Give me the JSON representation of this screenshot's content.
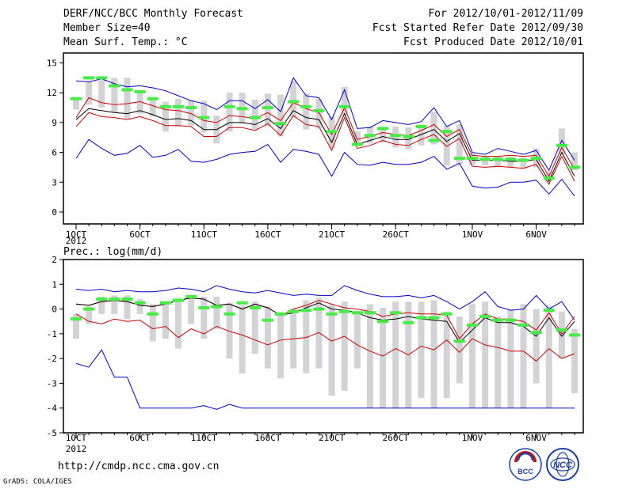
{
  "header": {
    "title": "DERF/NCC/BCC Monthly Forecast",
    "member_size": "Member Size=40",
    "variable": "Mean Surf. Temp.: °C",
    "period": "For 2012/10/01-2012/11/09",
    "fcst_started": "Fcst Started Refer Date 2012/09/30",
    "fcst_produced": "Fcst Produced Date 2012/10/01"
  },
  "footer": {
    "url": "http://cmdp.ncc.cma.gov.cn",
    "grads_credit": "GrADS: COLA/IGES",
    "logo_left_text": "BCC",
    "logo_right_text": "NCC"
  },
  "colors": {
    "max_line": "#0000cc",
    "min_line": "#0000cc",
    "percentile_line": "#cc0000",
    "mean_line": "#000000",
    "box": "#d3d3d5",
    "median_marker": "#44ee44"
  },
  "chart_data": [
    {
      "type": "box-line",
      "title": "Mean Surf. Temp.: °C",
      "ylim": [
        -1.2,
        16
      ],
      "yticks": [
        0,
        3,
        6,
        9,
        12,
        15
      ],
      "ytick_labels": [
        "0",
        "3",
        "6",
        "9",
        "12",
        "15"
      ],
      "x_day_count": 40,
      "xtick_days": [
        1,
        6,
        11,
        16,
        21,
        26,
        32,
        37
      ],
      "xtick_labels": [
        "1OCT",
        "6OCT",
        "11OCT",
        "16OCT",
        "21OCT",
        "26OCT",
        "1NOV",
        "6NOV"
      ],
      "year_label": "2012",
      "series": {
        "max": [
          13.2,
          13.1,
          13.4,
          12.9,
          12.6,
          12.7,
          12.5,
          12.2,
          11.7,
          11.2,
          10.9,
          10.3,
          11.2,
          11.2,
          10.4,
          11.3,
          10.1,
          13.5,
          11.7,
          11.5,
          9.3,
          12.3,
          8.4,
          8.5,
          9.2,
          9.0,
          8.8,
          9.1,
          10.5,
          8.6,
          9.2,
          6.0,
          5.8,
          6.4,
          6.1,
          5.8,
          6.2,
          4.2,
          7.2,
          5.2
        ],
        "p_upper": [
          9.5,
          11.5,
          11.0,
          10.8,
          10.9,
          11.1,
          10.7,
          10.3,
          10.2,
          9.9,
          9.2,
          9.0,
          9.7,
          9.6,
          9.4,
          10.0,
          9.2,
          11.0,
          10.4,
          10.0,
          7.8,
          10.5,
          7.3,
          7.6,
          8.0,
          7.8,
          7.7,
          8.2,
          8.8,
          7.6,
          8.3,
          5.7,
          5.6,
          5.6,
          5.7,
          5.6,
          5.7,
          3.6,
          6.5,
          4.3
        ],
        "mean": [
          9.3,
          10.4,
          10.2,
          10.0,
          9.9,
          10.2,
          9.8,
          9.3,
          9.4,
          9.2,
          8.3,
          8.3,
          9.0,
          9.0,
          8.8,
          9.4,
          8.4,
          10.2,
          9.5,
          9.3,
          7.0,
          9.9,
          6.8,
          7.2,
          7.6,
          7.3,
          7.3,
          7.8,
          8.3,
          7.1,
          7.9,
          5.2,
          5.2,
          5.2,
          5.1,
          5.1,
          5.3,
          3.1,
          6.0,
          3.6
        ],
        "p_lower": [
          8.6,
          10.0,
          9.6,
          9.5,
          9.3,
          9.6,
          9.2,
          8.7,
          8.7,
          8.6,
          7.6,
          7.6,
          8.5,
          8.5,
          8.2,
          8.9,
          7.7,
          9.7,
          8.8,
          8.6,
          6.2,
          9.5,
          6.4,
          6.7,
          7.2,
          6.8,
          6.7,
          7.3,
          7.8,
          6.6,
          7.4,
          4.6,
          4.5,
          4.6,
          4.5,
          4.4,
          4.8,
          2.8,
          5.6,
          3.1
        ],
        "min": [
          5.4,
          7.3,
          6.4,
          5.7,
          5.9,
          6.7,
          5.5,
          5.7,
          6.3,
          5.1,
          5.0,
          5.3,
          5.8,
          6.0,
          6.1,
          6.8,
          5.0,
          6.3,
          6.1,
          5.8,
          3.6,
          6.0,
          4.8,
          4.7,
          5.0,
          4.8,
          4.8,
          5.0,
          5.6,
          4.3,
          4.9,
          2.6,
          2.4,
          2.5,
          3.0,
          3.0,
          3.2,
          1.8,
          3.3,
          1.6
        ],
        "box_upper": [
          11.5,
          13.1,
          13.3,
          13.5,
          13.5,
          12.2,
          11.4,
          11.1,
          11.4,
          11.3,
          11.2,
          9.7,
          12.0,
          12.0,
          11.3,
          11.9,
          11.8,
          13.2,
          11.9,
          11.4,
          9.6,
          12.6,
          8.1,
          8.6,
          8.5,
          8.6,
          8.5,
          8.8,
          10.1,
          8.7,
          8.8,
          5.9,
          5.6,
          5.6,
          5.6,
          5.5,
          6.4,
          4.1,
          8.4,
          6.0
        ],
        "box_lower": [
          10.3,
          10.8,
          10.5,
          10.0,
          9.4,
          9.9,
          9.6,
          8.1,
          8.6,
          8.7,
          8.0,
          6.9,
          8.1,
          8.9,
          8.3,
          8.6,
          7.6,
          9.5,
          8.3,
          8.4,
          6.4,
          9.7,
          6.9,
          6.9,
          7.0,
          6.5,
          6.3,
          6.7,
          6.8,
          4.7,
          4.8,
          4.7,
          4.7,
          4.6,
          4.5,
          4.4,
          4.5,
          3.1,
          5.8,
          4.2
        ],
        "median": [
          11.4,
          13.5,
          13.5,
          12.7,
          12.3,
          12.1,
          11.4,
          10.6,
          10.6,
          10.5,
          9.5,
          null,
          10.6,
          10.4,
          9.5,
          10.5,
          8.9,
          11.1,
          10.6,
          10.2,
          8.1,
          10.6,
          6.8,
          7.7,
          8.4,
          7.7,
          7.6,
          8.6,
          7.2,
          8.1,
          5.4,
          5.4,
          5.3,
          5.3,
          5.3,
          5.2,
          5.4,
          3.4,
          6.7,
          4.5
        ]
      }
    },
    {
      "type": "box-line",
      "title": "Prec.: log(mm/d)",
      "ylim": [
        -5,
        2
      ],
      "yticks": [
        -5,
        -4,
        -3,
        -2,
        -1,
        0,
        1,
        2
      ],
      "ytick_labels": [
        "-5",
        "-4",
        "-3",
        "-2",
        "-1",
        "0",
        "1",
        "2"
      ],
      "x_day_count": 40,
      "xtick_days": [
        1,
        6,
        11,
        16,
        21,
        26,
        32,
        37
      ],
      "xtick_labels": [
        "1OCT",
        "6OCT",
        "11OCT",
        "16OCT",
        "21OCT",
        "26OCT",
        "1NOV",
        "6NOV"
      ],
      "year_label": "2012",
      "series": {
        "max": [
          0.8,
          0.75,
          0.8,
          0.7,
          0.75,
          0.7,
          0.7,
          0.75,
          0.85,
          0.8,
          0.7,
          0.95,
          0.8,
          0.7,
          0.65,
          0.75,
          0.65,
          0.55,
          0.6,
          0.55,
          0.55,
          0.95,
          0.75,
          0.6,
          0.5,
          0.5,
          0.55,
          0.45,
          0.55,
          0.3,
          0.0,
          0.3,
          0.7,
          0.1,
          -0.05,
          0.0,
          0.55,
          0.0,
          0.3,
          -0.45
        ],
        "p_upper": [
          0.2,
          0.15,
          0.3,
          0.35,
          0.3,
          0.15,
          0.1,
          0.2,
          0.35,
          0.45,
          0.4,
          0.15,
          0.2,
          0.0,
          0.2,
          0.05,
          -0.25,
          0.0,
          0.15,
          0.35,
          0.2,
          0.05,
          0.0,
          -0.1,
          -0.3,
          -0.2,
          -0.15,
          -0.2,
          -0.2,
          -0.25,
          -1.2,
          -0.6,
          -0.2,
          -0.4,
          -0.4,
          -0.5,
          -0.85,
          -0.15,
          -1.0,
          -0.3
        ],
        "mean": [
          0.2,
          0.15,
          0.3,
          0.35,
          0.3,
          0.15,
          0.1,
          0.2,
          0.35,
          0.45,
          0.4,
          0.15,
          0.2,
          0.0,
          0.2,
          0.05,
          -0.25,
          -0.15,
          0.05,
          0.25,
          0.0,
          -0.05,
          -0.15,
          -0.35,
          -0.45,
          -0.4,
          -0.3,
          -0.4,
          -0.45,
          -0.5,
          -1.35,
          -0.85,
          -0.35,
          -0.55,
          -0.55,
          -0.7,
          -1.1,
          -0.35,
          -1.1,
          -0.5
        ],
        "p_lower": [
          -0.2,
          -0.5,
          -0.6,
          -0.4,
          -0.5,
          -0.45,
          -0.8,
          -0.7,
          -1.15,
          -0.8,
          -1.0,
          -0.7,
          -0.9,
          -1.05,
          -1.25,
          -1.45,
          -1.25,
          -1.2,
          -1.15,
          -0.95,
          -1.3,
          -1.1,
          -1.45,
          -1.7,
          -1.9,
          -1.6,
          -1.85,
          -1.5,
          -1.65,
          -1.25,
          -1.75,
          -1.2,
          -1.45,
          -1.55,
          -1.7,
          -1.7,
          -2.1,
          -1.6,
          -2.0,
          -1.8
        ],
        "min": [
          -2.2,
          -2.35,
          -1.65,
          -2.75,
          -2.75,
          -4.0,
          -4.0,
          -4.0,
          -4.0,
          -4.0,
          -3.9,
          -4.05,
          -3.85,
          -4.0,
          -4.0,
          -4.0,
          -4.0,
          -4.0,
          -4.0,
          -4.0,
          -4.0,
          -4.0,
          -4.0,
          -4.0,
          -4.0,
          -4.0,
          -4.0,
          -4.0,
          -4.0,
          -4.0,
          -4.0,
          -4.0,
          -4.0,
          -4.0,
          -4.0,
          -4.0,
          -4.0,
          -4.0,
          -4.0,
          -4.0
        ],
        "box_upper": [
          -0.2,
          0.1,
          0.5,
          0.55,
          0.55,
          0.4,
          0.2,
          0.3,
          0.45,
          0.55,
          0.5,
          0.5,
          0.25,
          0.15,
          0.3,
          0.1,
          -0.2,
          0.0,
          0.35,
          0.45,
          0.2,
          0.3,
          -0.1,
          0.2,
          0.05,
          0.3,
          0.3,
          0.3,
          0.35,
          -0.1,
          -0.3,
          0.2,
          0.3,
          -0.3,
          0.0,
          0.2,
          0.0,
          0.1,
          -0.1,
          -0.8
        ],
        "box_lower": [
          -1.2,
          -0.6,
          -0.2,
          -0.2,
          -0.4,
          -0.2,
          -1.3,
          -1.2,
          -1.6,
          -0.6,
          -1.2,
          -0.8,
          -2.0,
          -2.6,
          -1.8,
          -2.4,
          -2.8,
          -2.4,
          -2.6,
          -2.4,
          -3.5,
          -3.3,
          -2.4,
          -4.0,
          -4.0,
          -4.0,
          -4.0,
          -3.6,
          -4.0,
          -3.6,
          -3.0,
          -4.0,
          -4.0,
          -4.0,
          -4.0,
          -4.0,
          -3.0,
          -4.0,
          -2.0,
          -3.4
        ],
        "median": [
          -0.4,
          0.0,
          0.4,
          0.4,
          0.4,
          0.25,
          -0.2,
          0.25,
          0.35,
          0.5,
          0.05,
          0.1,
          -0.2,
          0.25,
          0.05,
          -0.45,
          -0.2,
          -0.1,
          -0.05,
          0.0,
          -0.2,
          -0.1,
          -0.15,
          -0.15,
          -0.5,
          -0.15,
          -0.55,
          -0.35,
          -0.35,
          -0.2,
          -1.3,
          -0.65,
          -0.3,
          -0.45,
          -0.45,
          -0.65,
          -0.95,
          -0.05,
          -0.85,
          -1.05
        ]
      }
    }
  ],
  "panel2_label": "Prec.: log(mm/d)"
}
